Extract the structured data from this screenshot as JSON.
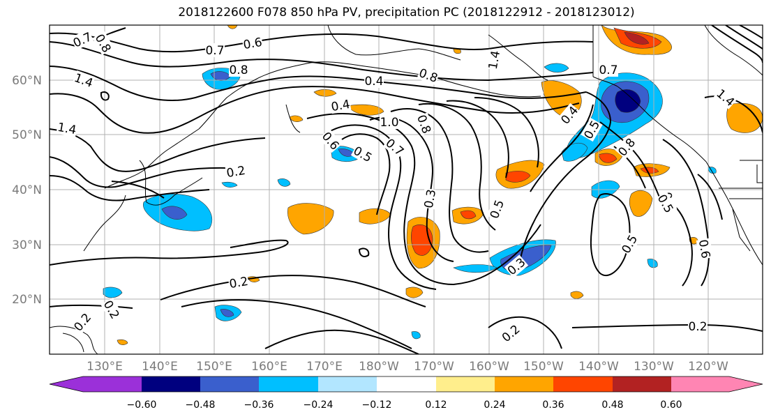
{
  "title": "2018122600 F078 850 hPa PV, precipitation PC (2018122912 - 2018123012)",
  "lat_labels": [
    "60°N",
    "50°N",
    "40°N",
    "30°N",
    "20°N"
  ],
  "lon_labels": [
    "130°E",
    "140°E",
    "150°E",
    "160°E",
    "170°E",
    "180°W",
    "170°W",
    "160°W",
    "150°W",
    "140°W",
    "130°W",
    "120°W"
  ],
  "colorbar": {
    "colors": [
      "#9b30d9",
      "#00007f",
      "#3a5fcd",
      "#00bfff",
      "#b2e6ff",
      "#ffffff",
      "#ffee8c",
      "#ffa500",
      "#ff4500",
      "#b22222",
      "#ff85b3"
    ],
    "tick_labels": [
      "−0.60",
      "−0.48",
      "−0.36",
      "−0.24",
      "−0.12",
      "0.12",
      "0.24",
      "0.36",
      "0.48",
      "0.60"
    ]
  },
  "contour_labels": [
    "0.7",
    "0.8",
    "0.6",
    "0.7",
    "0.8",
    "1.4",
    "1.4",
    "1.4",
    "0.4",
    "0.4",
    "1.0",
    "0.8",
    "0.6",
    "0.5",
    "0.7",
    "0.2",
    "0.3",
    "0.5",
    "0.5",
    "0.4",
    "0.5",
    "0.8",
    "0.7",
    "1.4",
    "0.2",
    "0.3",
    "0.5",
    "0.5",
    "0.6",
    "0.2",
    "0.2",
    "0.2",
    "0.2",
    "0.8"
  ]
}
